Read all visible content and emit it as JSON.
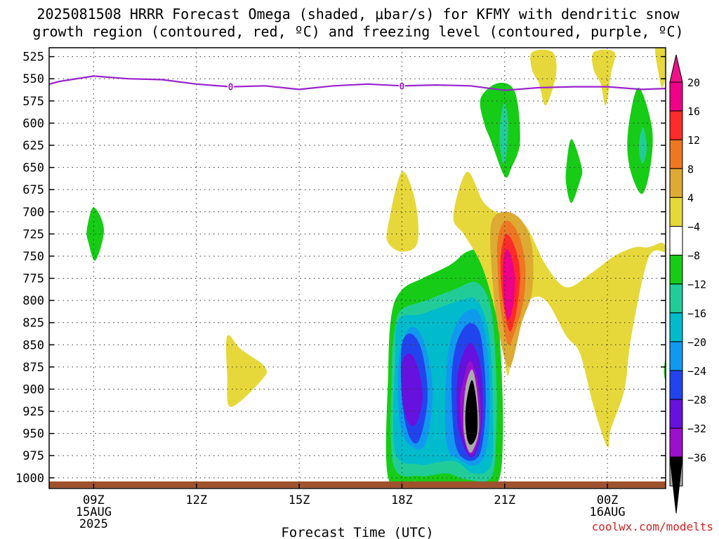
{
  "chart_data": {
    "type": "contour",
    "title_line1": "2025081508 HRRR Forecast Omega (shaded, μbar/s) for KFMY with dendritic snow",
    "title_line2": "growth region (contoured, red, ºC) and freezing level (contoured, purple, ºC)",
    "xlabel": "Forecast Time (UTC)",
    "credit": "coolwx.com/modelts",
    "x_range_hours": [
      7.7,
      25.7
    ],
    "y_range_hpa": [
      515,
      1012
    ],
    "x_ticks": [
      {
        "hour": 9,
        "label": "09Z",
        "sub1": "15AUG",
        "sub2": "2025"
      },
      {
        "hour": 12,
        "label": "12Z",
        "sub1": "",
        "sub2": ""
      },
      {
        "hour": 15,
        "label": "15Z",
        "sub1": "",
        "sub2": ""
      },
      {
        "hour": 18,
        "label": "18Z",
        "sub1": "",
        "sub2": ""
      },
      {
        "hour": 21,
        "label": "21Z",
        "sub1": "",
        "sub2": ""
      },
      {
        "hour": 24,
        "label": "00Z",
        "sub1": "16AUG",
        "sub2": ""
      }
    ],
    "y_ticks": [
      525,
      550,
      575,
      600,
      625,
      650,
      675,
      700,
      725,
      750,
      775,
      800,
      825,
      850,
      875,
      900,
      925,
      950,
      975,
      1000
    ],
    "colorbar": {
      "labels": [
        "20",
        "16",
        "12",
        "8",
        "4",
        "−4",
        "−8",
        "−12",
        "−16",
        "−20",
        "−24",
        "−28",
        "−32",
        "−36"
      ],
      "colors": [
        "#ee0088",
        "#ff2a2a",
        "#ee7722",
        "#ddaa33",
        "#e6d83a",
        "#ffffff",
        "#16cc16",
        "#22cc99",
        "#00bbcc",
        "#1199ee",
        "#2244ee",
        "#6611dd",
        "#9911cc",
        "#aaaaaa"
      ],
      "top_cap": "#ee1188",
      "bottom_cap": "#000000"
    },
    "freezing_level": {
      "color": "#9922cc",
      "label": "0",
      "label_hours": [
        13.0,
        18.0
      ],
      "points": [
        [
          7.7,
          556
        ],
        [
          8.0,
          553
        ],
        [
          9.0,
          547
        ],
        [
          10.0,
          550
        ],
        [
          11.0,
          551
        ],
        [
          12.0,
          556
        ],
        [
          13.0,
          559
        ],
        [
          14.0,
          558
        ],
        [
          15.0,
          562
        ],
        [
          16.0,
          558
        ],
        [
          17.0,
          556
        ],
        [
          18.0,
          558
        ],
        [
          19.0,
          557
        ],
        [
          20.0,
          558
        ],
        [
          21.0,
          563
        ],
        [
          22.0,
          560
        ],
        [
          23.0,
          559
        ],
        [
          24.0,
          559
        ],
        [
          25.0,
          562
        ],
        [
          25.7,
          561
        ]
      ]
    },
    "omega_regions": [
      {
        "color": "#16cc16",
        "points": [
          [
            18.0,
            788
          ],
          [
            18.6,
            775
          ],
          [
            19.4,
            760
          ],
          [
            19.9,
            745
          ],
          [
            20.3,
            745
          ],
          [
            20.6,
            770
          ],
          [
            20.8,
            820
          ],
          [
            20.9,
            870
          ],
          [
            20.95,
            950
          ],
          [
            20.8,
            1005
          ],
          [
            20.1,
            1008
          ],
          [
            19.4,
            1005
          ],
          [
            18.4,
            1004
          ],
          [
            17.6,
            1000
          ],
          [
            17.6,
            880
          ],
          [
            17.7,
            815
          ]
        ]
      },
      {
        "color": "#22cc99",
        "points": [
          [
            18.0,
            810
          ],
          [
            18.7,
            800
          ],
          [
            19.5,
            788
          ],
          [
            20.2,
            780
          ],
          [
            20.6,
            810
          ],
          [
            20.75,
            880
          ],
          [
            20.75,
            955
          ],
          [
            20.6,
            1000
          ],
          [
            19.9,
            1002
          ],
          [
            19.3,
            995
          ],
          [
            18.5,
            998
          ],
          [
            17.75,
            985
          ],
          [
            17.7,
            880
          ],
          [
            17.8,
            830
          ]
        ]
      },
      {
        "color": "#00bbcc",
        "points": [
          [
            17.9,
            822
          ],
          [
            18.6,
            815
          ],
          [
            19.7,
            800
          ],
          [
            20.2,
            800
          ],
          [
            20.55,
            840
          ],
          [
            20.65,
            920
          ],
          [
            20.6,
            985
          ],
          [
            20.1,
            995
          ],
          [
            19.6,
            982
          ],
          [
            19.1,
            982
          ],
          [
            18.5,
            985
          ],
          [
            17.8,
            970
          ],
          [
            17.8,
            870
          ]
        ]
      },
      {
        "color": "#1199ee",
        "points": [
          [
            18.2,
            832
          ],
          [
            18.6,
            842
          ],
          [
            18.9,
            900
          ],
          [
            18.7,
            960
          ],
          [
            18.3,
            965
          ],
          [
            17.95,
            940
          ],
          [
            17.9,
            870
          ]
        ]
      },
      {
        "color": "#1199ee",
        "points": [
          [
            19.5,
            835
          ],
          [
            19.9,
            812
          ],
          [
            20.3,
            818
          ],
          [
            20.55,
            880
          ],
          [
            20.5,
            960
          ],
          [
            20.2,
            985
          ],
          [
            19.7,
            980
          ],
          [
            19.3,
            960
          ],
          [
            19.3,
            880
          ]
        ]
      },
      {
        "color": "#2244ee",
        "points": [
          [
            18.0,
            850
          ],
          [
            18.3,
            838
          ],
          [
            18.6,
            860
          ],
          [
            18.75,
            910
          ],
          [
            18.5,
            958
          ],
          [
            18.2,
            952
          ],
          [
            18.0,
            910
          ]
        ]
      },
      {
        "color": "#2244ee",
        "points": [
          [
            19.6,
            848
          ],
          [
            19.95,
            826
          ],
          [
            20.3,
            840
          ],
          [
            20.45,
            910
          ],
          [
            20.3,
            970
          ],
          [
            19.9,
            980
          ],
          [
            19.55,
            960
          ],
          [
            19.45,
            890
          ]
        ]
      },
      {
        "color": "#6611dd",
        "points": [
          [
            18.0,
            870
          ],
          [
            18.25,
            860
          ],
          [
            18.5,
            880
          ],
          [
            18.6,
            912
          ],
          [
            18.4,
            940
          ],
          [
            18.15,
            935
          ],
          [
            18.0,
            905
          ]
        ]
      },
      {
        "color": "#6611dd",
        "points": [
          [
            19.7,
            870
          ],
          [
            20.0,
            848
          ],
          [
            20.3,
            875
          ],
          [
            20.35,
            930
          ],
          [
            20.2,
            968
          ],
          [
            19.95,
            975
          ],
          [
            19.65,
            945
          ],
          [
            19.6,
            900
          ]
        ]
      },
      {
        "color": "#9911cc",
        "points": [
          [
            19.8,
            890
          ],
          [
            20.0,
            868
          ],
          [
            20.25,
            898
          ],
          [
            20.3,
            940
          ],
          [
            20.15,
            968
          ],
          [
            19.95,
            972
          ],
          [
            19.75,
            945
          ],
          [
            19.7,
            910
          ]
        ]
      },
      {
        "color": "#aaaaaa",
        "points": [
          [
            19.85,
            900
          ],
          [
            20.05,
            878
          ],
          [
            20.2,
            905
          ],
          [
            20.25,
            945
          ],
          [
            20.1,
            967
          ],
          [
            19.95,
            970
          ],
          [
            19.8,
            945
          ]
        ]
      },
      {
        "color": "#000000",
        "points": [
          [
            19.9,
            910
          ],
          [
            20.05,
            890
          ],
          [
            20.18,
            915
          ],
          [
            20.2,
            948
          ],
          [
            20.05,
            962
          ],
          [
            19.92,
            958
          ],
          [
            19.85,
            935
          ]
        ]
      },
      {
        "color": "#e6d83a",
        "points": [
          [
            19.5,
            705
          ],
          [
            19.9,
            655
          ],
          [
            20.4,
            690
          ],
          [
            21.0,
            705
          ],
          [
            21.6,
            715
          ],
          [
            22.2,
            760
          ],
          [
            22.8,
            785
          ],
          [
            23.5,
            770
          ],
          [
            24.2,
            750
          ],
          [
            24.8,
            740
          ],
          [
            25.2,
            740
          ],
          [
            25.6,
            735
          ],
          [
            25.7,
            745
          ],
          [
            25.2,
            752
          ],
          [
            24.7,
            840
          ],
          [
            24.5,
            900
          ],
          [
            24.1,
            945
          ],
          [
            24.0,
            965
          ],
          [
            23.6,
            920
          ],
          [
            23.2,
            860
          ],
          [
            22.8,
            840
          ],
          [
            22.2,
            800
          ],
          [
            21.7,
            800
          ],
          [
            21.3,
            830
          ],
          [
            21.1,
            885
          ],
          [
            20.9,
            840
          ],
          [
            20.5,
            780
          ],
          [
            20.2,
            750
          ],
          [
            19.8,
            725
          ]
        ]
      },
      {
        "color": "#ddaa33",
        "points": [
          [
            20.6,
            715
          ],
          [
            21.0,
            700
          ],
          [
            21.5,
            710
          ],
          [
            21.8,
            740
          ],
          [
            21.8,
            790
          ],
          [
            21.5,
            825
          ],
          [
            21.15,
            875
          ],
          [
            20.85,
            840
          ],
          [
            20.65,
            780
          ]
        ]
      },
      {
        "color": "#ee7722",
        "points": [
          [
            20.8,
            730
          ],
          [
            21.05,
            710
          ],
          [
            21.4,
            725
          ],
          [
            21.6,
            760
          ],
          [
            21.55,
            800
          ],
          [
            21.3,
            835
          ],
          [
            21.1,
            850
          ],
          [
            20.9,
            815
          ],
          [
            20.8,
            770
          ]
        ]
      },
      {
        "color": "#ff2a2a",
        "points": [
          [
            20.9,
            745
          ],
          [
            21.05,
            725
          ],
          [
            21.3,
            740
          ],
          [
            21.45,
            770
          ],
          [
            21.35,
            810
          ],
          [
            21.15,
            835
          ],
          [
            20.95,
            800
          ],
          [
            20.88,
            770
          ]
        ]
      },
      {
        "color": "#ee0088",
        "points": [
          [
            20.95,
            760
          ],
          [
            21.05,
            742
          ],
          [
            21.2,
            752
          ],
          [
            21.3,
            775
          ],
          [
            21.25,
            805
          ],
          [
            21.1,
            822
          ],
          [
            20.98,
            800
          ]
        ]
      },
      {
        "color": "#e6d83a",
        "points": [
          [
            17.6,
            715
          ],
          [
            18.0,
            655
          ],
          [
            18.4,
            690
          ],
          [
            18.45,
            735
          ],
          [
            18.0,
            745
          ],
          [
            17.6,
            735
          ]
        ]
      },
      {
        "color": "#e6d83a",
        "points": [
          [
            12.9,
            840
          ],
          [
            13.3,
            855
          ],
          [
            14.0,
            875
          ],
          [
            13.9,
            890
          ],
          [
            13.0,
            920
          ],
          [
            12.9,
            885
          ]
        ]
      },
      {
        "color": "#e6d83a",
        "points": [
          [
            21.8,
            520
          ],
          [
            22.4,
            520
          ],
          [
            22.5,
            545
          ],
          [
            22.2,
            580
          ],
          [
            22.0,
            555
          ],
          [
            21.8,
            540
          ]
        ]
      },
      {
        "color": "#e6d83a",
        "points": [
          [
            23.6,
            520
          ],
          [
            24.2,
            520
          ],
          [
            24.1,
            545
          ],
          [
            23.95,
            580
          ],
          [
            23.8,
            555
          ],
          [
            23.6,
            540
          ]
        ]
      },
      {
        "color": "#e6d83a",
        "points": [
          [
            25.4,
            515
          ],
          [
            25.7,
            515
          ],
          [
            25.7,
            545
          ],
          [
            25.6,
            560
          ],
          [
            25.5,
            545
          ]
        ]
      },
      {
        "color": "#16cc16",
        "points": [
          [
            20.3,
            572
          ],
          [
            20.8,
            555
          ],
          [
            21.3,
            565
          ],
          [
            21.45,
            620
          ],
          [
            21.2,
            650
          ],
          [
            21.0,
            660
          ],
          [
            20.6,
            620
          ],
          [
            20.4,
            600
          ]
        ]
      },
      {
        "color": "#22cc99",
        "points": [
          [
            20.9,
            590
          ],
          [
            21.0,
            578
          ],
          [
            21.1,
            600
          ],
          [
            21.05,
            635
          ],
          [
            20.95,
            645
          ],
          [
            20.85,
            620
          ]
        ]
      },
      {
        "color": "#16cc16",
        "points": [
          [
            22.8,
            650
          ],
          [
            22.95,
            618
          ],
          [
            23.25,
            650
          ],
          [
            23.2,
            665
          ],
          [
            22.95,
            690
          ],
          [
            22.8,
            670
          ]
        ]
      },
      {
        "color": "#16cc16",
        "points": [
          [
            24.6,
            610
          ],
          [
            24.9,
            560
          ],
          [
            25.3,
            605
          ],
          [
            25.25,
            650
          ],
          [
            25.0,
            680
          ],
          [
            24.65,
            650
          ]
        ]
      },
      {
        "color": "#22cc99",
        "points": [
          [
            24.95,
            615
          ],
          [
            25.05,
            605
          ],
          [
            25.15,
            625
          ],
          [
            25.1,
            640
          ],
          [
            25.0,
            645
          ],
          [
            24.92,
            630
          ]
        ]
      },
      {
        "color": "#16cc16",
        "points": [
          [
            8.8,
            720
          ],
          [
            9.0,
            695
          ],
          [
            9.3,
            720
          ],
          [
            9.05,
            755
          ],
          [
            8.85,
            735
          ]
        ]
      },
      {
        "color": "#16cc16",
        "points": [
          [
            25.65,
            880
          ],
          [
            25.7,
            865
          ],
          [
            25.7,
            890
          ]
        ]
      }
    ],
    "ground_color": "#a0522d"
  }
}
